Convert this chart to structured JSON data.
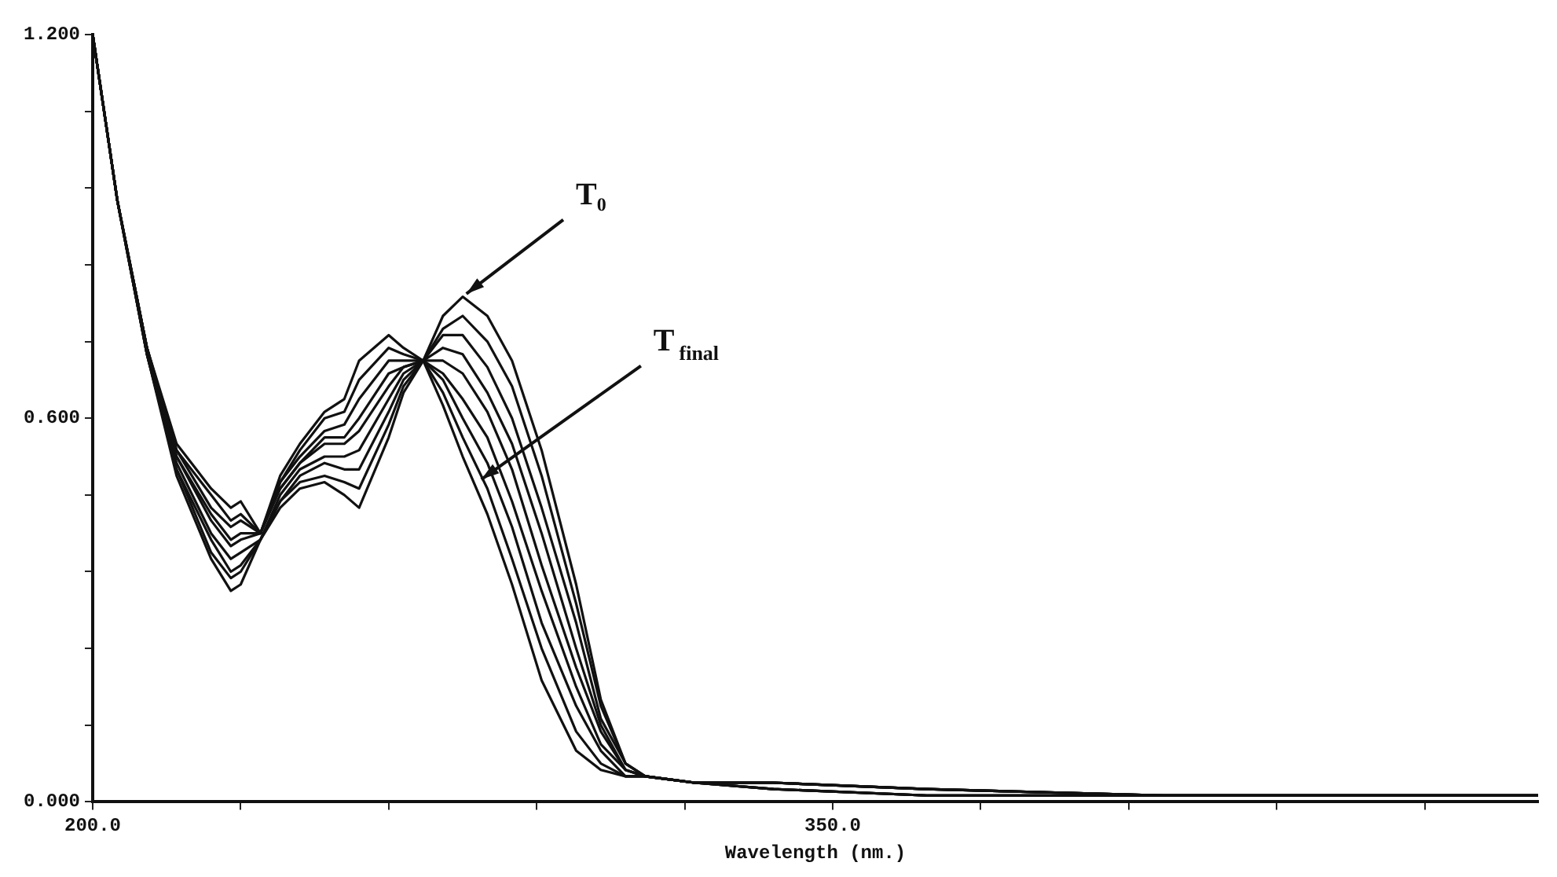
{
  "chart_data": {
    "type": "line",
    "xlabel": "Wavelength (nm.)",
    "x": [
      200,
      205,
      211,
      217,
      224,
      228,
      230,
      234,
      238,
      242,
      247,
      251,
      254,
      260,
      263,
      267,
      271,
      275,
      280,
      285,
      291,
      298,
      303,
      308,
      312,
      322,
      338,
      369,
      417,
      493
    ],
    "series": [
      {
        "color": "#111111",
        "values": [
          1.2,
          0.94,
          0.7,
          0.51,
          0.38,
          0.33,
          0.34,
          0.41,
          0.46,
          0.49,
          0.5,
          0.48,
          0.46,
          0.57,
          0.64,
          0.69,
          0.76,
          0.79,
          0.76,
          0.69,
          0.55,
          0.34,
          0.16,
          0.06,
          0.04,
          0.03,
          0.02,
          0.01,
          0.01,
          0.01
        ]
      },
      {
        "color": "#111111",
        "values": [
          1.2,
          0.94,
          0.7,
          0.52,
          0.39,
          0.35,
          0.36,
          0.41,
          0.47,
          0.5,
          0.51,
          0.5,
          0.49,
          0.59,
          0.65,
          0.69,
          0.74,
          0.76,
          0.72,
          0.65,
          0.51,
          0.31,
          0.15,
          0.06,
          0.04,
          0.03,
          0.02,
          0.01,
          0.01,
          0.01
        ]
      },
      {
        "color": "#111111",
        "values": [
          1.2,
          0.94,
          0.7,
          0.52,
          0.41,
          0.36,
          0.37,
          0.41,
          0.47,
          0.51,
          0.53,
          0.52,
          0.52,
          0.61,
          0.66,
          0.69,
          0.73,
          0.73,
          0.68,
          0.6,
          0.46,
          0.28,
          0.13,
          0.06,
          0.04,
          0.03,
          0.02,
          0.01,
          0.01,
          0.01
        ]
      },
      {
        "color": "#111111",
        "values": [
          1.2,
          0.94,
          0.7,
          0.53,
          0.42,
          0.38,
          0.39,
          0.41,
          0.48,
          0.52,
          0.54,
          0.54,
          0.55,
          0.63,
          0.67,
          0.69,
          0.71,
          0.7,
          0.64,
          0.56,
          0.42,
          0.24,
          0.12,
          0.05,
          0.04,
          0.03,
          0.02,
          0.01,
          0.01,
          0.01
        ]
      },
      {
        "color": "#111111",
        "values": [
          1.2,
          0.94,
          0.71,
          0.54,
          0.44,
          0.4,
          0.41,
          0.42,
          0.49,
          0.53,
          0.56,
          0.56,
          0.58,
          0.65,
          0.68,
          0.69,
          0.69,
          0.67,
          0.61,
          0.52,
          0.37,
          0.21,
          0.11,
          0.05,
          0.04,
          0.03,
          0.03,
          0.02,
          0.01,
          0.01
        ]
      },
      {
        "color": "#111111",
        "values": [
          1.2,
          0.94,
          0.71,
          0.54,
          0.45,
          0.41,
          0.42,
          0.42,
          0.49,
          0.53,
          0.57,
          0.57,
          0.6,
          0.67,
          0.68,
          0.69,
          0.67,
          0.63,
          0.57,
          0.47,
          0.33,
          0.18,
          0.09,
          0.05,
          0.04,
          0.03,
          0.03,
          0.02,
          0.01,
          0.01
        ]
      },
      {
        "color": "#111111",
        "values": [
          1.2,
          0.94,
          0.71,
          0.55,
          0.46,
          0.43,
          0.44,
          0.42,
          0.5,
          0.54,
          0.58,
          0.59,
          0.63,
          0.69,
          0.69,
          0.69,
          0.66,
          0.6,
          0.53,
          0.43,
          0.28,
          0.15,
          0.08,
          0.04,
          0.04,
          0.03,
          0.03,
          0.02,
          0.01,
          0.01
        ]
      },
      {
        "color": "#111111",
        "values": [
          1.2,
          0.94,
          0.71,
          0.55,
          0.48,
          0.44,
          0.45,
          0.42,
          0.5,
          0.55,
          0.6,
          0.61,
          0.66,
          0.71,
          0.7,
          0.69,
          0.64,
          0.57,
          0.49,
          0.38,
          0.24,
          0.11,
          0.06,
          0.04,
          0.04,
          0.03,
          0.03,
          0.02,
          0.01,
          0.01
        ]
      },
      {
        "color": "#111111",
        "values": [
          1.2,
          0.94,
          0.71,
          0.56,
          0.49,
          0.46,
          0.47,
          0.42,
          0.51,
          0.56,
          0.61,
          0.63,
          0.69,
          0.73,
          0.71,
          0.69,
          0.62,
          0.54,
          0.45,
          0.34,
          0.19,
          0.08,
          0.05,
          0.04,
          0.04,
          0.03,
          0.03,
          0.02,
          0.01,
          0.01
        ]
      }
    ],
    "xlim": [
      200,
      493
    ],
    "xticks": [
      {
        "value": 200,
        "label": "200.0"
      },
      {
        "value": 230,
        "label": null
      },
      {
        "value": 260,
        "label": null
      },
      {
        "value": 290,
        "label": null
      },
      {
        "value": 320,
        "label": null
      },
      {
        "value": 350,
        "label": "350.0"
      },
      {
        "value": 380,
        "label": null
      },
      {
        "value": 410,
        "label": null
      },
      {
        "value": 440,
        "label": null
      },
      {
        "value": 470,
        "label": null
      }
    ],
    "ylim": [
      0,
      1.2
    ],
    "yticks": [
      {
        "value": 0,
        "label": "0.000"
      },
      {
        "value": 0.12,
        "label": null
      },
      {
        "value": 0.24,
        "label": null
      },
      {
        "value": 0.36,
        "label": null
      },
      {
        "value": 0.48,
        "label": null
      },
      {
        "value": 0.6,
        "label": "0.600"
      },
      {
        "value": 0.72,
        "label": null
      },
      {
        "value": 0.84,
        "label": null
      },
      {
        "value": 0.96,
        "label": null
      },
      {
        "value": 1.08,
        "label": null
      },
      {
        "value": 1.2,
        "label": "1.200"
      }
    ],
    "annotations": [
      {
        "text": "T₀",
        "x": 275,
        "y": 0.79
      },
      {
        "text": "T$_{final}$",
        "x": 278,
        "y": 0.5
      }
    ],
    "grid": false,
    "legend": false,
    "marker": "none",
    "line_style": "solid"
  }
}
